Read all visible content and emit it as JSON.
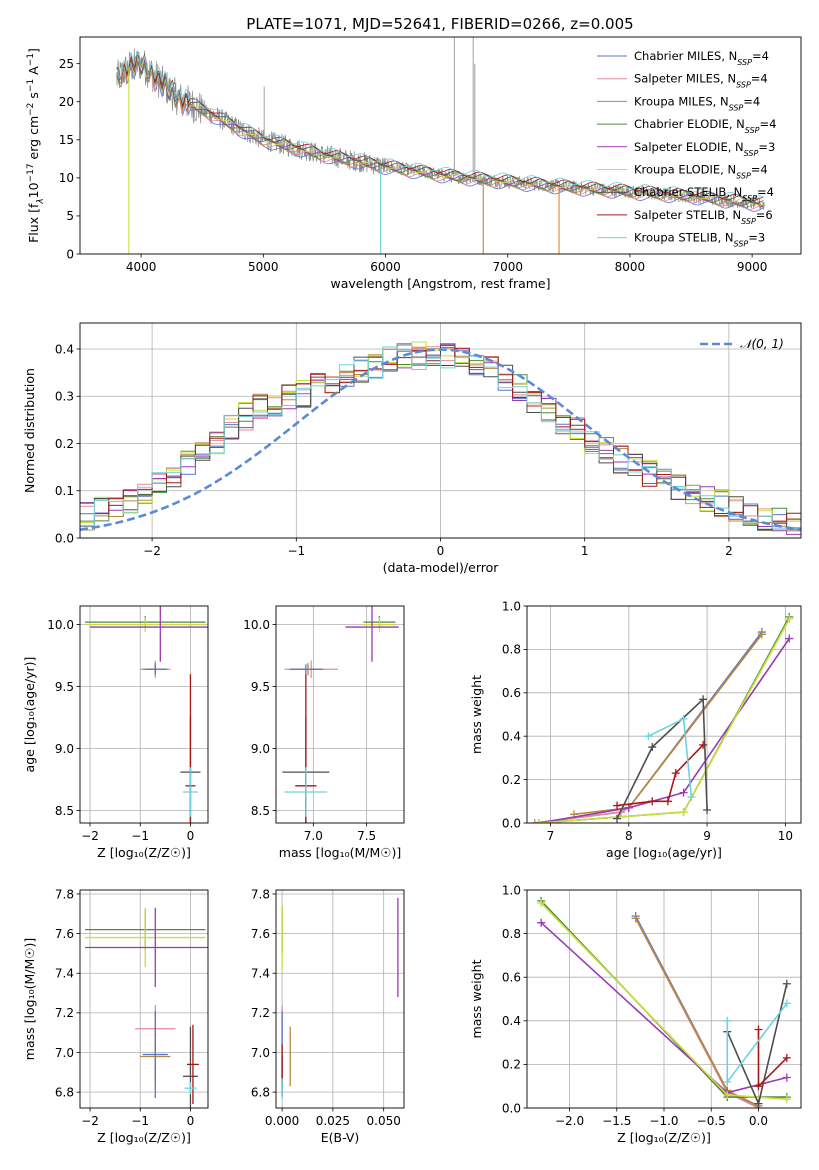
{
  "figure_title": "PLATE=1071, MJD=52641, FIBERID=0266, z=0.005",
  "colors": {
    "Chabrier MILES": "#5b74c9",
    "Salpeter MILES": "#e58a9c",
    "Kroupa MILES": "#b8893a",
    "Chabrier ELODIE": "#4f8a3c",
    "Salpeter ELODIE": "#9a3bb0",
    "Kroupa ELODIE": "#c8df3a",
    "Chabrier STELIB": "#4d4d4d",
    "Salpeter STELIB": "#a81616",
    "Kroupa STELIB": "#6fd2db",
    "data": "#8a8a8a",
    "normal": "#5b8bd6",
    "orange": "#e0843a",
    "yellowgreen": "#9ccf2a"
  },
  "chart_data": [
    {
      "id": "spectrum",
      "type": "line",
      "title": "PLATE=1071, MJD=52641, FIBERID=0266, z=0.005",
      "xlabel": "wavelength [Angstrom, rest frame]",
      "ylabel_parts": [
        "Flux [f",
        "λ",
        "10",
        "−17",
        " erg cm",
        "−2",
        " s",
        "−1",
        " A",
        "−1",
        "]"
      ],
      "xlim": [
        3500,
        9400
      ],
      "ylim": [
        0,
        28.5
      ],
      "xticks": [
        4000,
        5000,
        6000,
        7000,
        8000,
        9000
      ],
      "yticks": [
        0,
        5,
        10,
        15,
        20,
        25
      ],
      "continuum": [
        [
          3800,
          23
        ],
        [
          3900,
          24.5
        ],
        [
          4000,
          25
        ],
        [
          4100,
          23.5
        ],
        [
          4300,
          20.5
        ],
        [
          4500,
          19
        ],
        [
          4800,
          16.5
        ],
        [
          5000,
          15
        ],
        [
          5500,
          13
        ],
        [
          6000,
          11.5
        ],
        [
          6500,
          10.3
        ],
        [
          7000,
          9.5
        ],
        [
          7500,
          8.8
        ],
        [
          8000,
          8.2
        ],
        [
          8500,
          7.6
        ],
        [
          9000,
          6.7
        ],
        [
          9100,
          6.5
        ]
      ],
      "emission_lines": [
        [
          4861,
          16.8
        ],
        [
          5007,
          22
        ],
        [
          6563,
          28.5
        ],
        [
          6717,
          28.5
        ],
        [
          6731,
          25
        ]
      ],
      "legend": [
        {
          "label": "Chabrier MILES, N",
          "sub": "SSP",
          "suffix": "=4"
        },
        {
          "label": "Salpeter MILES, N",
          "sub": "SSP",
          "suffix": "=4"
        },
        {
          "label": "Kroupa MILES, N",
          "sub": "SSP",
          "suffix": "=4"
        },
        {
          "label": "Chabrier ELODIE, N",
          "sub": "SSP",
          "suffix": "=4"
        },
        {
          "label": "Salpeter ELODIE, N",
          "sub": "SSP",
          "suffix": "=3"
        },
        {
          "label": "Kroupa ELODIE, N",
          "sub": "SSP",
          "suffix": "=4"
        },
        {
          "label": "Chabrier STELIB, N",
          "sub": "SSP",
          "suffix": "=4"
        },
        {
          "label": "Salpeter STELIB, N",
          "sub": "SSP",
          "suffix": "=6"
        },
        {
          "label": "Kroupa STELIB, N",
          "sub": "SSP",
          "suffix": "=3"
        }
      ]
    },
    {
      "id": "residuals",
      "type": "histogram",
      "xlabel": "(data-model)/error",
      "ylabel": "Normed distribution",
      "xlim": [
        -2.5,
        2.5
      ],
      "ylim": [
        0,
        0.455
      ],
      "xticks": [
        -2,
        -1,
        0,
        1,
        2
      ],
      "yticks": [
        0.0,
        0.1,
        0.2,
        0.3,
        0.4
      ],
      "bin_width": 0.1,
      "legend_label": "𝒩(0, 1)",
      "envelope": [
        [
          -2.5,
          0.04
        ],
        [
          -2.0,
          0.1
        ],
        [
          -1.7,
          0.17
        ],
        [
          -1.3,
          0.27
        ],
        [
          -1.0,
          0.3
        ],
        [
          -0.6,
          0.35
        ],
        [
          -0.3,
          0.38
        ],
        [
          0.0,
          0.39
        ],
        [
          0.2,
          0.38
        ],
        [
          0.5,
          0.33
        ],
        [
          0.8,
          0.26
        ],
        [
          1.1,
          0.19
        ],
        [
          1.5,
          0.13
        ],
        [
          1.9,
          0.08
        ],
        [
          2.2,
          0.05
        ],
        [
          2.5,
          0.025
        ]
      ]
    },
    {
      "id": "age_vs_Z",
      "type": "errorbar",
      "xlabel": "Z [log₁₀(Z/Z☉)]",
      "ylabel": "age  [log₁₀(age/yr)]",
      "xlim": [
        -2.2,
        0.35
      ],
      "ylim": [
        8.4,
        10.15
      ],
      "xticks": [
        -2,
        -1,
        0
      ],
      "yticks": [
        8.5,
        9.0,
        9.5,
        10.0
      ],
      "points": [
        {
          "m": "Chabrier ELODIE",
          "x": -0.9,
          "xe": 1.2,
          "y": 10.02,
          "ye": 0.05
        },
        {
          "m": "Kroupa ELODIE",
          "x": -0.9,
          "xe": 1.2,
          "y": 10.0,
          "ye": 0.06
        },
        {
          "m": "Salpeter ELODIE",
          "x": -0.6,
          "xe": 1.4,
          "y": 9.98,
          "ye": 0.28
        },
        {
          "m": "Salpeter MILES",
          "x": -0.7,
          "xe": 0.3,
          "y": 9.64,
          "ye": 0.07
        },
        {
          "m": "Kroupa MILES",
          "x": -0.7,
          "xe": 0.25,
          "y": 9.64,
          "ye": 0.05
        },
        {
          "m": "Chabrier MILES",
          "x": -0.7,
          "xe": 0.2,
          "y": 9.64,
          "ye": 0.04
        },
        {
          "m": "Chabrier STELIB",
          "x": 0.0,
          "xe": 0.2,
          "y": 8.81,
          "ye": 0.45
        },
        {
          "m": "Salpeter STELIB",
          "x": 0.0,
          "xe": 0.1,
          "y": 8.7,
          "ye": 0.9
        },
        {
          "m": "Kroupa STELIB",
          "x": 0.0,
          "xe": 0.15,
          "y": 8.65,
          "ye": 0.2
        }
      ]
    },
    {
      "id": "age_vs_mass",
      "type": "errorbar",
      "xlabel": "mass [log₁₀(M/M☉)]",
      "ylabel": "",
      "xlim": [
        6.65,
        7.85
      ],
      "ylim": [
        8.4,
        10.15
      ],
      "xticks": [
        7.0,
        7.5
      ],
      "yticks": [
        8.5,
        9.0,
        9.5,
        10.0
      ],
      "points": [
        {
          "m": "Chabrier ELODIE",
          "x": 7.62,
          "xe": 0.15,
          "y": 10.02,
          "ye": 0.05
        },
        {
          "m": "Kroupa ELODIE",
          "x": 7.62,
          "xe": 0.15,
          "y": 10.0,
          "ye": 0.06
        },
        {
          "m": "Salpeter ELODIE",
          "x": 7.55,
          "xe": 0.25,
          "y": 9.98,
          "ye": 0.28
        },
        {
          "m": "Salpeter MILES",
          "x": 6.98,
          "xe": 0.25,
          "y": 9.64,
          "ye": 0.07
        },
        {
          "m": "Kroupa MILES",
          "x": 6.95,
          "xe": 0.15,
          "y": 9.64,
          "ye": 0.05
        },
        {
          "m": "Chabrier MILES",
          "x": 6.93,
          "xe": 0.15,
          "y": 9.64,
          "ye": 0.04
        },
        {
          "m": "Chabrier STELIB",
          "x": 6.93,
          "xe": 0.22,
          "y": 8.81,
          "ye": 0.45
        },
        {
          "m": "Salpeter STELIB",
          "x": 6.93,
          "xe": 0.1,
          "y": 8.7,
          "ye": 0.9
        },
        {
          "m": "Kroupa STELIB",
          "x": 6.93,
          "xe": 0.2,
          "y": 8.65,
          "ye": 0.2
        }
      ]
    },
    {
      "id": "weight_vs_age",
      "type": "line",
      "xlabel": "age  [log₁₀(age/yr)]",
      "ylabel": "mass weight",
      "xlim": [
        6.7,
        10.2
      ],
      "ylim": [
        0,
        1.0
      ],
      "xticks": [
        7,
        8,
        9,
        10
      ],
      "yticks": [
        0.0,
        0.2,
        0.4,
        0.6,
        0.8,
        1.0
      ],
      "series": [
        {
          "m": "Chabrier MILES",
          "x": [
            6.8,
            7.9,
            8.0,
            9.7
          ],
          "y": [
            0.0,
            0.05,
            0.07,
            0.88
          ]
        },
        {
          "m": "Salpeter MILES",
          "x": [
            6.8,
            7.9,
            8.0,
            9.7
          ],
          "y": [
            0.0,
            0.05,
            0.07,
            0.87
          ]
        },
        {
          "m": "Kroupa MILES",
          "x": [
            7.3,
            8.0,
            9.7
          ],
          "y": [
            0.04,
            0.07,
            0.87
          ]
        },
        {
          "m": "Chabrier ELODIE",
          "x": [
            6.85,
            8.7,
            10.05
          ],
          "y": [
            0.0,
            0.05,
            0.95
          ]
        },
        {
          "m": "Salpeter ELODIE",
          "x": [
            6.85,
            8.0,
            8.7,
            10.05
          ],
          "y": [
            0.0,
            0.07,
            0.14,
            0.85
          ]
        },
        {
          "m": "Kroupa ELODIE",
          "x": [
            6.85,
            8.7,
            10.05
          ],
          "y": [
            0.0,
            0.05,
            0.94
          ]
        },
        {
          "m": "Chabrier STELIB",
          "x": [
            7.85,
            8.3,
            8.95,
            9.0
          ],
          "y": [
            0.02,
            0.35,
            0.57,
            0.06
          ]
        },
        {
          "m": "Salpeter STELIB",
          "x": [
            7.85,
            8.3,
            8.5,
            8.6,
            8.95
          ],
          "y": [
            0.08,
            0.1,
            0.1,
            0.23,
            0.36
          ]
        },
        {
          "m": "Kroupa STELIB",
          "x": [
            8.25,
            8.7,
            8.8
          ],
          "y": [
            0.4,
            0.48,
            0.12
          ]
        }
      ]
    },
    {
      "id": "mass_vs_Z",
      "type": "errorbar",
      "xlabel": "Z [log₁₀(Z/Z☉)]",
      "ylabel": "mass [log₁₀(M/M☉)]",
      "xlim": [
        -2.2,
        0.35
      ],
      "ylim": [
        6.72,
        7.82
      ],
      "xticks": [
        -2,
        -1,
        0
      ],
      "yticks": [
        6.8,
        7.0,
        7.2,
        7.4,
        7.6,
        7.8
      ],
      "points": [
        {
          "m": "Chabrier ELODIE",
          "x": -0.9,
          "xe": 1.2,
          "y": 7.62,
          "ye": 0.1
        },
        {
          "m": "Kroupa ELODIE",
          "x": -0.9,
          "xe": 1.2,
          "y": 7.58,
          "ye": 0.15
        },
        {
          "m": "Salpeter ELODIE",
          "x": -0.7,
          "xe": 1.4,
          "y": 7.53,
          "ye": 0.2
        },
        {
          "m": "Salpeter MILES",
          "x": -0.7,
          "xe": 0.4,
          "y": 7.12,
          "ye": 0.12
        },
        {
          "m": "Kroupa MILES",
          "x": -0.7,
          "xe": 0.3,
          "y": 6.98,
          "ye": 0.15
        },
        {
          "m": "Chabrier MILES",
          "x": -0.7,
          "xe": 0.25,
          "y": 6.99,
          "ye": 0.22
        },
        {
          "m": "Chabrier STELIB",
          "x": 0.0,
          "xe": 0.15,
          "y": 6.88,
          "ye": 0.25
        },
        {
          "m": "Salpeter STELIB",
          "x": 0.05,
          "xe": 0.12,
          "y": 6.94,
          "ye": 0.2
        },
        {
          "m": "Kroupa STELIB",
          "x": 0.0,
          "xe": 0.12,
          "y": 6.82,
          "ye": 0.03
        }
      ]
    },
    {
      "id": "mass_vs_EBV",
      "type": "errorbar",
      "xlabel": "E(B-V)",
      "ylabel": "",
      "xlim": [
        -0.003,
        0.06
      ],
      "ylim": [
        6.72,
        7.82
      ],
      "xticks": [
        0.0,
        0.025,
        0.05
      ],
      "yticks": [
        6.8,
        7.0,
        7.2,
        7.4,
        7.6,
        7.8
      ],
      "points": [
        {
          "m": "Chabrier ELODIE",
          "x": 0.0,
          "xe": 0.0,
          "y": 7.62,
          "ye": 0.12
        },
        {
          "m": "Kroupa ELODIE",
          "x": 0.0,
          "xe": 0.0,
          "y": 7.58,
          "ye": 0.16
        },
        {
          "m": "Salpeter ELODIE",
          "x": 0.057,
          "xe": 0.0,
          "y": 7.53,
          "ye": 0.25
        },
        {
          "m": "Salpeter MILES",
          "x": 0.0,
          "xe": 0.0,
          "y": 7.12,
          "ye": 0.12
        },
        {
          "m": "Kroupa MILES",
          "x": 0.004,
          "xe": 0.0,
          "y": 6.98,
          "ye": 0.15
        },
        {
          "m": "Chabrier MILES",
          "x": 0.0,
          "xe": 0.0,
          "y": 6.99,
          "ye": 0.22
        },
        {
          "m": "Chabrier STELIB",
          "x": 0.0,
          "xe": 0.0,
          "y": 6.88,
          "ye": 0.1
        },
        {
          "m": "Salpeter STELIB",
          "x": 0.0,
          "xe": 0.0,
          "y": 6.94,
          "ye": 0.1
        },
        {
          "m": "Kroupa STELIB",
          "x": 0.0,
          "xe": 0.0,
          "y": 6.82,
          "ye": 0.05
        }
      ]
    },
    {
      "id": "weight_vs_Z",
      "type": "line",
      "xlabel": "Z [log₁₀(Z/Z☉)]",
      "ylabel": "mass weight",
      "xlim": [
        -2.45,
        0.45
      ],
      "ylim": [
        0,
        1.0
      ],
      "xticks": [
        -2.0,
        -1.5,
        -1.0,
        -0.5,
        0.0
      ],
      "yticks": [
        0.0,
        0.2,
        0.4,
        0.6,
        0.8,
        1.0
      ],
      "series": [
        {
          "m": "Chabrier MILES",
          "x": [
            -1.3,
            -0.33,
            0.0
          ],
          "y": [
            0.88,
            0.08,
            0.0
          ]
        },
        {
          "m": "Salpeter MILES",
          "x": [
            -1.3,
            -0.33,
            0.0
          ],
          "y": [
            0.87,
            0.07,
            0.0
          ]
        },
        {
          "m": "Kroupa MILES",
          "x": [
            -1.3,
            -0.33,
            0.0
          ],
          "y": [
            0.87,
            0.08,
            0.01
          ]
        },
        {
          "m": "Chabrier ELODIE",
          "x": [
            -2.3,
            -0.33,
            0.3
          ],
          "y": [
            0.95,
            0.05,
            0.05
          ]
        },
        {
          "m": "Salpeter ELODIE",
          "x": [
            -2.3,
            -0.33,
            0.3
          ],
          "y": [
            0.85,
            0.07,
            0.14
          ]
        },
        {
          "m": "Kroupa ELODIE",
          "x": [
            -2.3,
            -0.33,
            0.3
          ],
          "y": [
            0.94,
            0.06,
            0.04
          ]
        },
        {
          "m": "Chabrier STELIB",
          "x": [
            -0.33,
            0.0,
            0.3
          ],
          "y": [
            0.35,
            0.02,
            0.57
          ]
        },
        {
          "m": "Salpeter STELIB",
          "x": [
            0.0,
            0.0,
            0.3
          ],
          "y": [
            0.36,
            0.1,
            0.23
          ]
        },
        {
          "m": "Kroupa STELIB",
          "x": [
            -0.33,
            -0.33,
            0.3
          ],
          "y": [
            0.4,
            0.12,
            0.48
          ]
        }
      ]
    }
  ]
}
